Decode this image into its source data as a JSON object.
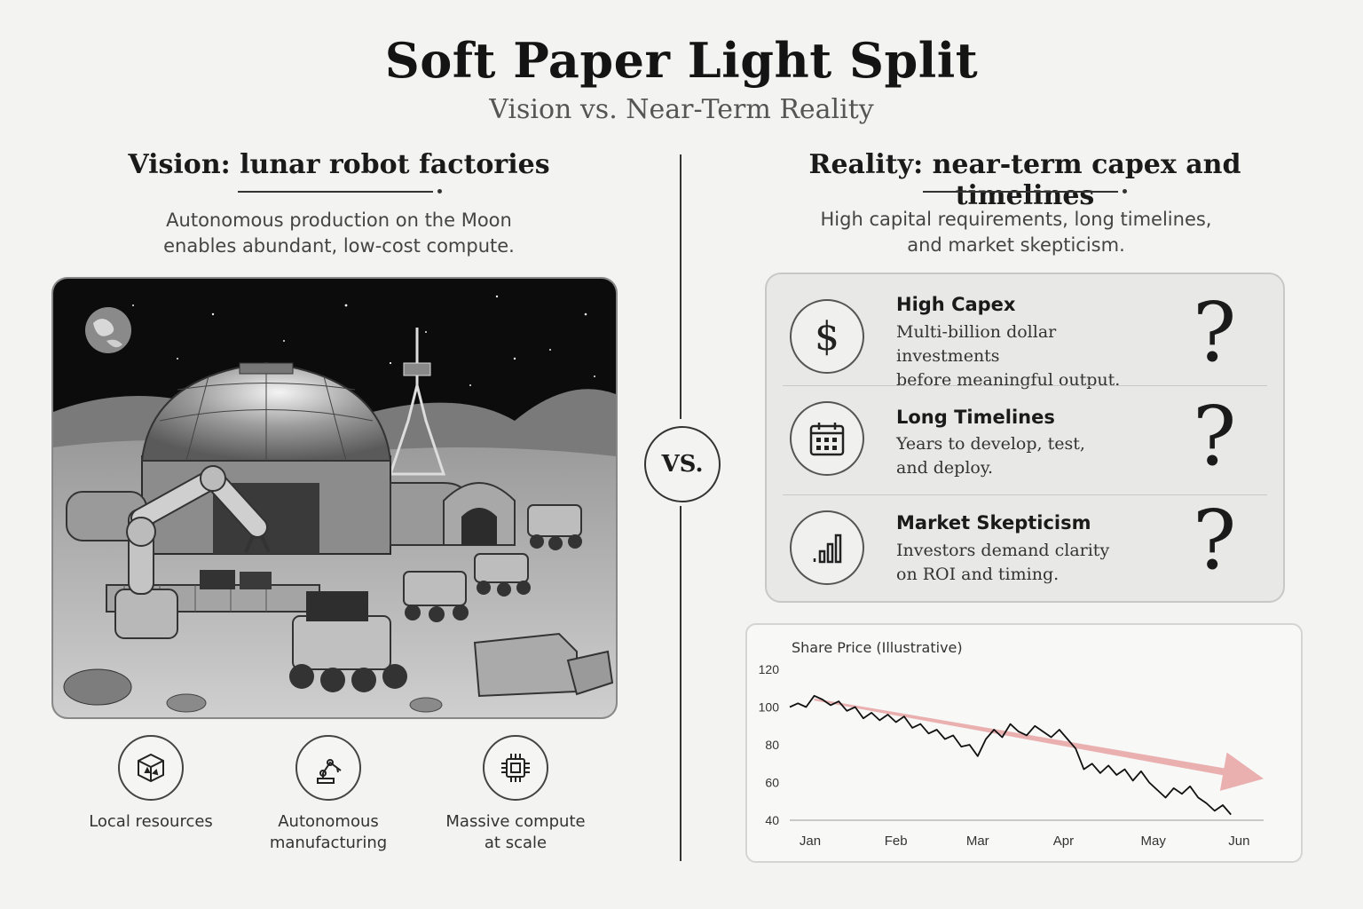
{
  "header": {
    "title": "Soft Paper Light Split",
    "subtitle": "Vision vs. Near-Term Reality"
  },
  "vision": {
    "heading": "Vision: lunar robot factories",
    "desc_line1": "Autonomous production on the Moon",
    "desc_line2": "enables abundant, low-cost compute.",
    "features": [
      {
        "icon": "cube-icon",
        "line1": "Local resources",
        "line2": ""
      },
      {
        "icon": "robot-arm-icon",
        "line1": "Autonomous",
        "line2": "manufacturing"
      },
      {
        "icon": "chip-icon",
        "line1": "Massive compute",
        "line2": "at scale"
      }
    ]
  },
  "vs_label": "VS.",
  "reality": {
    "heading": "Reality: near-term capex and timelines",
    "desc_line1": "High capital requirements, long timelines,",
    "desc_line2": "and market skepticism.",
    "rows": [
      {
        "icon": "dollar-icon",
        "title": "High Capex",
        "line1": "Multi-billion dollar investments",
        "line2": "before meaningful output.",
        "mark": "?"
      },
      {
        "icon": "calendar-icon",
        "title": "Long Timelines",
        "line1": "Years to develop, test,",
        "line2": "and deploy.",
        "mark": "?"
      },
      {
        "icon": "bar-chart-icon",
        "title": "Market Skepticism",
        "line1": "Investors demand clarity",
        "line2": "on ROI and timing.",
        "mark": "?"
      }
    ]
  },
  "colors": {
    "trend_arrow": "#e8a3a3",
    "line": "#111111"
  },
  "chart_data": {
    "type": "line",
    "title": "Share Price (Illustrative)",
    "xlabel": "",
    "ylabel": "",
    "x_ticks": [
      "Jan",
      "Feb",
      "Mar",
      "Apr",
      "May",
      "Jun"
    ],
    "y_ticks": [
      120,
      100,
      80,
      60,
      40
    ],
    "ylim": [
      40,
      120
    ],
    "series": [
      {
        "x": [
          0,
          0.1,
          0.2,
          0.3,
          0.4,
          0.5,
          0.6,
          0.7,
          0.8,
          0.9,
          1.0,
          1.1,
          1.2,
          1.3,
          1.4,
          1.5,
          1.6,
          1.7,
          1.8,
          1.9,
          2.0,
          2.1,
          2.2,
          2.3,
          2.4,
          2.5,
          2.6,
          2.7,
          2.8,
          2.9,
          3.0,
          3.1,
          3.2,
          3.3,
          3.4,
          3.5,
          3.6,
          3.7,
          3.8,
          3.9,
          4.0,
          4.1,
          4.2,
          4.3,
          4.4,
          4.5,
          4.6,
          4.7,
          4.8,
          4.9,
          5.0,
          5.1,
          5.2,
          5.3,
          5.4
        ],
        "values": [
          100,
          102,
          100,
          106,
          104,
          101,
          103,
          98,
          100,
          94,
          97,
          93,
          96,
          92,
          95,
          89,
          91,
          86,
          88,
          83,
          85,
          79,
          80,
          74,
          83,
          88,
          84,
          91,
          87,
          85,
          90,
          87,
          84,
          88,
          83,
          78,
          67,
          70,
          65,
          69,
          64,
          67,
          61,
          66,
          60,
          56,
          52,
          57,
          54,
          58,
          52,
          49,
          45,
          48,
          43
        ]
      }
    ],
    "trend_arrow": {
      "from": [
        0.3,
        104
      ],
      "to": [
        5.8,
        62
      ]
    }
  }
}
